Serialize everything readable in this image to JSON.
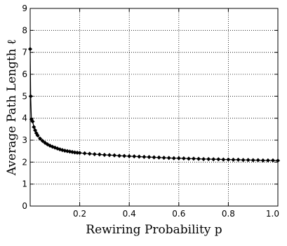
{
  "chart_data": {
    "type": "line",
    "xlabel": "Rewiring Probability p",
    "ylabel": "Average Path Length ℓ",
    "xlim": [
      0,
      1.0
    ],
    "ylim": [
      0,
      9
    ],
    "x_ticks": [
      {
        "value": 0.2,
        "label": "0.2"
      },
      {
        "value": 0.4,
        "label": "0.4"
      },
      {
        "value": 0.6,
        "label": "0.6"
      },
      {
        "value": 0.8,
        "label": "0.8"
      },
      {
        "value": 1.0,
        "label": "1.0"
      }
    ],
    "y_ticks": [
      {
        "value": 0,
        "label": "0"
      },
      {
        "value": 1,
        "label": "1"
      },
      {
        "value": 2,
        "label": "2"
      },
      {
        "value": 3,
        "label": "3"
      },
      {
        "value": 4,
        "label": "4"
      },
      {
        "value": 5,
        "label": "5"
      },
      {
        "value": 6,
        "label": "6"
      },
      {
        "value": 7,
        "label": "7"
      },
      {
        "value": 8,
        "label": "8"
      },
      {
        "value": 9,
        "label": "9"
      }
    ],
    "grid": true,
    "marker": "diamond",
    "color": "#000000",
    "series": [
      {
        "x": [
          0.0,
          0.002,
          0.005,
          0.01,
          0.015,
          0.02,
          0.025,
          0.03,
          0.04,
          0.05,
          0.06,
          0.07,
          0.08,
          0.09,
          0.1,
          0.11,
          0.12,
          0.13,
          0.14,
          0.15,
          0.16,
          0.17,
          0.18,
          0.19,
          0.2,
          0.22,
          0.24,
          0.26,
          0.28,
          0.3,
          0.32,
          0.34,
          0.36,
          0.38,
          0.4,
          0.42,
          0.44,
          0.46,
          0.48,
          0.5,
          0.52,
          0.54,
          0.56,
          0.58,
          0.6,
          0.62,
          0.64,
          0.66,
          0.68,
          0.7,
          0.72,
          0.74,
          0.76,
          0.78,
          0.8,
          0.82,
          0.84,
          0.86,
          0.88,
          0.9,
          0.92,
          0.94,
          0.96,
          0.98,
          1.0
        ],
        "y": [
          7.15,
          5.0,
          3.95,
          3.85,
          3.6,
          3.45,
          3.32,
          3.22,
          3.07,
          2.97,
          2.88,
          2.81,
          2.75,
          2.7,
          2.66,
          2.62,
          2.58,
          2.55,
          2.52,
          2.5,
          2.48,
          2.46,
          2.44,
          2.43,
          2.42,
          2.4,
          2.38,
          2.36,
          2.35,
          2.33,
          2.32,
          2.31,
          2.29,
          2.28,
          2.27,
          2.26,
          2.25,
          2.24,
          2.23,
          2.22,
          2.21,
          2.2,
          2.19,
          2.18,
          2.18,
          2.17,
          2.16,
          2.16,
          2.15,
          2.14,
          2.14,
          2.13,
          2.13,
          2.12,
          2.12,
          2.11,
          2.11,
          2.1,
          2.1,
          2.09,
          2.09,
          2.08,
          2.08,
          2.08,
          2.07
        ]
      }
    ]
  }
}
